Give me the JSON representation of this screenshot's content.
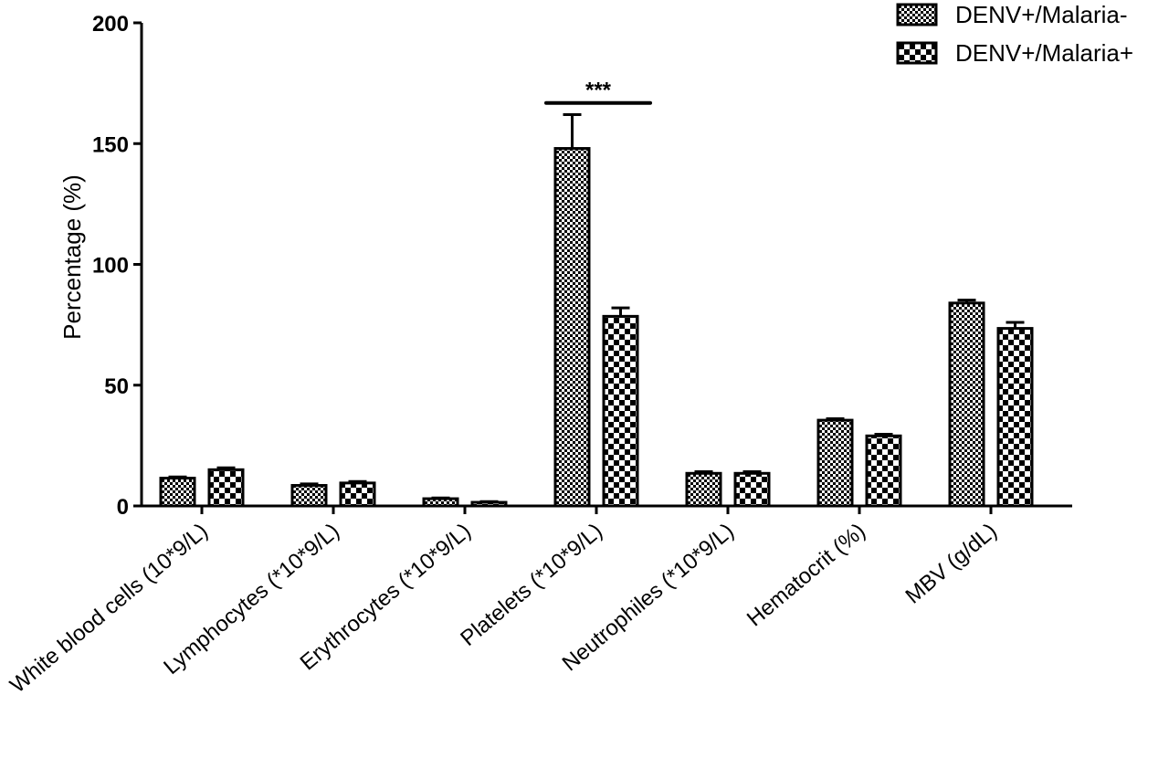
{
  "chart_data": {
    "type": "bar",
    "title": "",
    "xlabel": "",
    "ylabel": "Percentage (%)",
    "ylim": [
      0,
      200
    ],
    "yticks": [
      "0",
      "50",
      "100",
      "150",
      "200"
    ],
    "grid": false,
    "legend_position": "top-right",
    "categories": [
      "White blood cells (10*9/L)",
      "Lymphocytes (*10*9/L)",
      "Erythrocytes (*10*9/L)",
      "Platelets (*10*9/L)",
      "Neutrophiles (*10*9/L)",
      "Hematocrit (%)",
      "MBV (g/dL)"
    ],
    "series": [
      {
        "name": "DENV+/Malaria-",
        "pattern": "fine-checker",
        "values": [
          11.5,
          8.5,
          3.0,
          148,
          13.5,
          35.5,
          84
        ],
        "errors": [
          0.5,
          0.6,
          0.3,
          14,
          0.7,
          0.6,
          1.2
        ]
      },
      {
        "name": "DENV+/Malaria+",
        "pattern": "coarse-checker",
        "values": [
          15,
          9.5,
          1.5,
          78.5,
          13.5,
          29,
          73.5
        ],
        "errors": [
          0.8,
          0.6,
          0.3,
          3.5,
          0.7,
          0.7,
          2.5
        ]
      }
    ],
    "annotations": [
      {
        "text": "***",
        "category_index": 3,
        "y": 171
      }
    ],
    "colors": {
      "bar_fill": "#ffffff",
      "bar_ink": "#000000",
      "background": "#ffffff"
    }
  }
}
